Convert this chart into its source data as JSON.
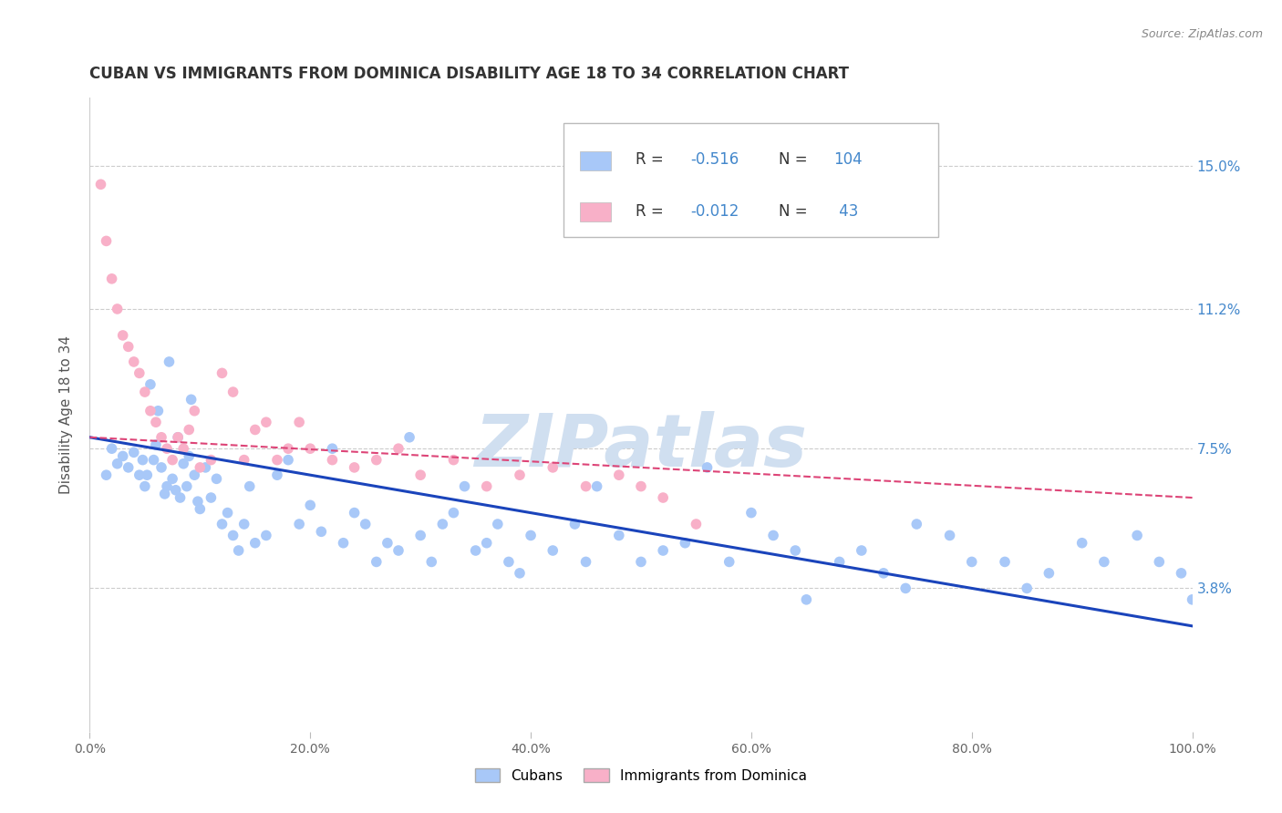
{
  "title": "CUBAN VS IMMIGRANTS FROM DOMINICA DISABILITY AGE 18 TO 34 CORRELATION CHART",
  "source": "Source: ZipAtlas.com",
  "ylabel": "Disability Age 18 to 34",
  "ytick_labels": [
    "3.8%",
    "7.5%",
    "11.2%",
    "15.0%"
  ],
  "ytick_values": [
    3.8,
    7.5,
    11.2,
    15.0
  ],
  "xlim": [
    0.0,
    100.0
  ],
  "ylim": [
    0.0,
    16.8
  ],
  "cubans_color": "#a8c8f8",
  "dominica_color": "#f8b0c8",
  "trendline_cubans_color": "#1a44bb",
  "trendline_dominica_color": "#dd4477",
  "background_color": "#ffffff",
  "watermark": "ZIPatlas",
  "watermark_color": "#d0dff0",
  "legend_box_color": "#cccccc",
  "cubans_x": [
    1.5,
    2.0,
    2.5,
    3.0,
    3.5,
    4.0,
    4.5,
    4.8,
    5.0,
    5.2,
    5.5,
    5.8,
    6.0,
    6.2,
    6.5,
    6.8,
    7.0,
    7.2,
    7.5,
    7.8,
    8.0,
    8.2,
    8.5,
    8.8,
    9.0,
    9.2,
    9.5,
    9.8,
    10.0,
    10.5,
    11.0,
    11.5,
    12.0,
    12.5,
    13.0,
    13.5,
    14.0,
    14.5,
    15.0,
    16.0,
    17.0,
    18.0,
    19.0,
    20.0,
    21.0,
    22.0,
    23.0,
    24.0,
    25.0,
    26.0,
    27.0,
    28.0,
    29.0,
    30.0,
    31.0,
    32.0,
    33.0,
    34.0,
    35.0,
    36.0,
    37.0,
    38.0,
    39.0,
    40.0,
    42.0,
    44.0,
    45.0,
    46.0,
    48.0,
    50.0,
    52.0,
    54.0,
    56.0,
    58.0,
    60.0,
    62.0,
    64.0,
    65.0,
    68.0,
    70.0,
    72.0,
    74.0,
    75.0,
    78.0,
    80.0,
    83.0,
    85.0,
    87.0,
    90.0,
    92.0,
    95.0,
    97.0,
    99.0,
    100.0
  ],
  "cubans_y": [
    6.8,
    7.5,
    7.1,
    7.3,
    7.0,
    7.4,
    6.8,
    7.2,
    6.5,
    6.8,
    9.2,
    7.2,
    7.6,
    8.5,
    7.0,
    6.3,
    6.5,
    9.8,
    6.7,
    6.4,
    7.8,
    6.2,
    7.1,
    6.5,
    7.3,
    8.8,
    6.8,
    6.1,
    5.9,
    7.0,
    6.2,
    6.7,
    5.5,
    5.8,
    5.2,
    4.8,
    5.5,
    6.5,
    5.0,
    5.2,
    6.8,
    7.2,
    5.5,
    6.0,
    5.3,
    7.5,
    5.0,
    5.8,
    5.5,
    4.5,
    5.0,
    4.8,
    7.8,
    5.2,
    4.5,
    5.5,
    5.8,
    6.5,
    4.8,
    5.0,
    5.5,
    4.5,
    4.2,
    5.2,
    4.8,
    5.5,
    4.5,
    6.5,
    5.2,
    4.5,
    4.8,
    5.0,
    7.0,
    4.5,
    5.8,
    5.2,
    4.8,
    3.5,
    4.5,
    4.8,
    4.2,
    3.8,
    5.5,
    5.2,
    4.5,
    4.5,
    3.8,
    4.2,
    5.0,
    4.5,
    5.2,
    4.5,
    4.2,
    3.5
  ],
  "dominica_x": [
    1.0,
    1.5,
    2.0,
    2.5,
    3.0,
    3.5,
    4.0,
    4.5,
    5.0,
    5.5,
    6.0,
    6.5,
    7.0,
    7.5,
    8.0,
    8.5,
    9.0,
    9.5,
    10.0,
    11.0,
    12.0,
    13.0,
    14.0,
    15.0,
    16.0,
    17.0,
    18.0,
    19.0,
    20.0,
    22.0,
    24.0,
    26.0,
    28.0,
    30.0,
    33.0,
    36.0,
    39.0,
    42.0,
    45.0,
    48.0,
    50.0,
    52.0,
    55.0
  ],
  "dominica_y": [
    14.5,
    13.0,
    12.0,
    11.2,
    10.5,
    10.2,
    9.8,
    9.5,
    9.0,
    8.5,
    8.2,
    7.8,
    7.5,
    7.2,
    7.8,
    7.5,
    8.0,
    8.5,
    7.0,
    7.2,
    9.5,
    9.0,
    7.2,
    8.0,
    8.2,
    7.2,
    7.5,
    8.2,
    7.5,
    7.2,
    7.0,
    7.2,
    7.5,
    6.8,
    7.2,
    6.5,
    6.8,
    7.0,
    6.5,
    6.8,
    6.5,
    6.2,
    5.5
  ],
  "trendline_cubans_start_x": 0,
  "trendline_cubans_end_x": 100,
  "trendline_cubans_start_y": 7.8,
  "trendline_cubans_end_y": 2.8,
  "trendline_dominica_start_x": 0,
  "trendline_dominica_end_x": 100,
  "trendline_dominica_start_y": 7.8,
  "trendline_dominica_end_y": 6.2
}
